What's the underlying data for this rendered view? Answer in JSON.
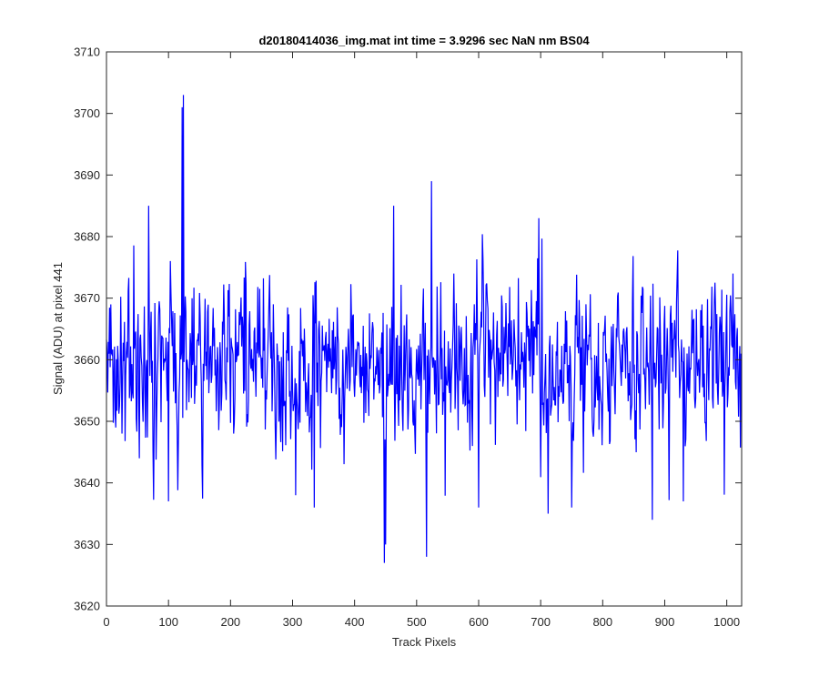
{
  "chart_data": {
    "type": "line",
    "title": "d20180414036_img.mat int time = 3.9296 sec  NaN nm BS04",
    "xlabel": "Track Pixels",
    "ylabel": "Signal (ADU) at pixel 441",
    "xlim": [
      0,
      1024
    ],
    "ylim": [
      3620,
      3710
    ],
    "xticks": [
      0,
      100,
      200,
      300,
      400,
      500,
      600,
      700,
      800,
      900,
      1000
    ],
    "yticks": [
      3620,
      3630,
      3640,
      3650,
      3660,
      3670,
      3680,
      3690,
      3700,
      3710
    ],
    "grid": false,
    "box": true,
    "series": [
      {
        "color": "#0000ff",
        "n_points": 1024,
        "baseline": 3659.5,
        "noise_std": 7,
        "noise_seed": 441,
        "notable_points": [
          {
            "x": 1,
            "y": 3661
          },
          {
            "x": 25,
            "y": 3648
          },
          {
            "x": 53,
            "y": 3644
          },
          {
            "x": 68,
            "y": 3685
          },
          {
            "x": 100,
            "y": 3637
          },
          {
            "x": 122,
            "y": 3701
          },
          {
            "x": 124,
            "y": 3703
          },
          {
            "x": 130,
            "y": 3660
          },
          {
            "x": 205,
            "y": 3648
          },
          {
            "x": 305,
            "y": 3638
          },
          {
            "x": 335,
            "y": 3636
          },
          {
            "x": 448,
            "y": 3627
          },
          {
            "x": 450,
            "y": 3630
          },
          {
            "x": 463,
            "y": 3685
          },
          {
            "x": 516,
            "y": 3628
          },
          {
            "x": 524,
            "y": 3689
          },
          {
            "x": 600,
            "y": 3636
          },
          {
            "x": 697,
            "y": 3683
          },
          {
            "x": 712,
            "y": 3635
          },
          {
            "x": 750,
            "y": 3636
          },
          {
            "x": 880,
            "y": 3634
          },
          {
            "x": 930,
            "y": 3637
          },
          {
            "x": 1010,
            "y": 3674
          },
          {
            "x": 1018,
            "y": 3657
          },
          {
            "x": 1023,
            "y": 3661
          }
        ]
      }
    ]
  }
}
